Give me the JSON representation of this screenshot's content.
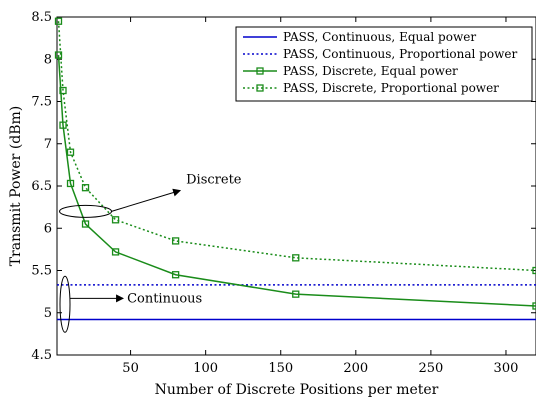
{
  "chart_data": {
    "type": "line",
    "title": "",
    "xlabel": "Number of Discrete Positions per meter",
    "ylabel": "Transmit Power (dBm)",
    "xlim": [
      1,
      320
    ],
    "ylim": [
      4.5,
      8.5
    ],
    "xticks": [
      50,
      100,
      150,
      200,
      250,
      300
    ],
    "yticks": [
      4.5,
      5,
      5.5,
      6,
      6.5,
      7,
      7.5,
      8,
      8.5
    ],
    "grid": false,
    "legend_position": "top-right",
    "series": [
      {
        "name": "PASS, Continuous, Equal power",
        "color": "#0000cc",
        "line": "solid",
        "marker": "none",
        "x": [
          1,
          320
        ],
        "y": [
          4.92,
          4.92
        ]
      },
      {
        "name": "PASS, Continuous, Proportional power",
        "color": "#0000cc",
        "line": "dotted",
        "marker": "none",
        "x": [
          1,
          320
        ],
        "y": [
          5.33,
          5.33
        ]
      },
      {
        "name": "PASS, Discrete, Equal power",
        "color": "#1a8c1a",
        "line": "solid",
        "marker": "square",
        "x": [
          2,
          5,
          10,
          20,
          40,
          80,
          160,
          320
        ],
        "y": [
          8.05,
          7.22,
          6.53,
          6.05,
          5.72,
          5.45,
          5.22,
          5.08
        ]
      },
      {
        "name": "PASS, Discrete, Proportional power",
        "color": "#1a8c1a",
        "line": "dotted",
        "marker": "square",
        "x": [
          2,
          5,
          10,
          20,
          40,
          80,
          160,
          320
        ],
        "y": [
          8.45,
          7.63,
          6.9,
          6.48,
          6.1,
          5.85,
          5.65,
          5.5
        ]
      }
    ],
    "annotations": [
      {
        "text": "Discrete",
        "ellipse_center": [
          20,
          6.2
        ],
        "arrow_to": [
          85,
          6.47
        ]
      },
      {
        "text": "Continuous",
        "ellipse_center": [
          5,
          5.1
        ],
        "arrow_to": [
          45,
          5.17
        ]
      }
    ]
  }
}
